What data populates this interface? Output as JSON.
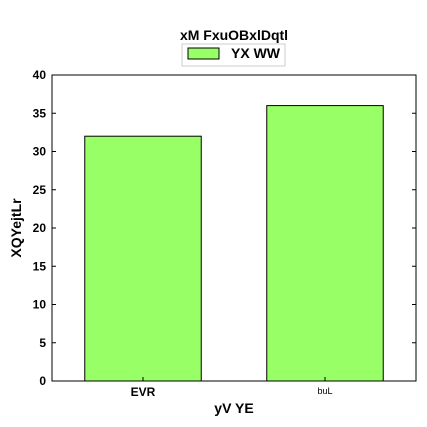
{
  "chart_data": {
    "type": "bar",
    "title": "xM FxuOBxlDqtl",
    "xlabel": "yV YE",
    "ylabel": "XQYejtLr",
    "categories": [
      "EVR",
      "buL"
    ],
    "series": [
      {
        "name": "YX WW",
        "values": [
          32,
          36
        ],
        "color": "#99ff66"
      }
    ],
    "ylim": [
      0,
      40
    ],
    "yticks": [
      0,
      5,
      10,
      15,
      20,
      25,
      30,
      35,
      40
    ],
    "grid": false,
    "legend": "top-center"
  }
}
